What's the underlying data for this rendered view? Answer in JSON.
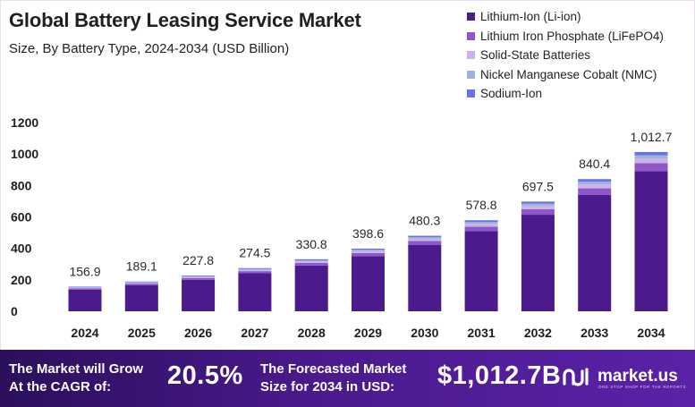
{
  "colors": {
    "lithium_ion": "#4b1a8c",
    "lifepo4": "#8e57c9",
    "solid_state": "#cbb3e8",
    "nmc": "#9db3d9",
    "sodium_ion": "#6a73e0",
    "footer_bg": "#3f1784"
  },
  "chart_data": {
    "type": "bar",
    "stacked": true,
    "title": "Global Battery Leasing Service Market",
    "subtitle": "Size, By Battery Type, 2024-2034 (USD Billion)",
    "categories": [
      "2024",
      "2025",
      "2026",
      "2027",
      "2028",
      "2029",
      "2030",
      "2031",
      "2032",
      "2033",
      "2034"
    ],
    "totals": [
      156.9,
      189.1,
      227.8,
      274.5,
      330.8,
      398.6,
      480.3,
      578.8,
      697.5,
      840.4,
      1012.7
    ],
    "total_labels": [
      "156.9",
      "189.1",
      "227.8",
      "274.5",
      "330.8",
      "398.6",
      "480.3",
      "578.8",
      "697.5",
      "840.4",
      "1,012.7"
    ],
    "series": [
      {
        "name": "Lithium-Ion (Li-ion)",
        "values": [
          138.1,
          166.4,
          200.5,
          241.6,
          291.1,
          350.8,
          422.7,
          509.3,
          613.8,
          739.6,
          891.2
        ]
      },
      {
        "name": "Lithium Iron Phosphate (LiFePO4)",
        "values": [
          7.8,
          9.5,
          11.4,
          13.7,
          16.5,
          19.9,
          24.0,
          28.9,
          34.9,
          42.0,
          50.6
        ]
      },
      {
        "name": "Solid-State Batteries",
        "values": [
          4.7,
          5.7,
          6.8,
          8.2,
          9.9,
          12.0,
          14.4,
          17.4,
          20.9,
          25.2,
          30.4
        ]
      },
      {
        "name": "Nickel Manganese Cobalt (NMC)",
        "values": [
          3.1,
          3.8,
          4.6,
          5.5,
          6.6,
          8.0,
          9.6,
          11.6,
          14.0,
          16.8,
          20.3
        ]
      },
      {
        "name": "Sodium-Ion",
        "values": [
          3.2,
          3.7,
          4.5,
          5.5,
          6.7,
          7.9,
          9.6,
          11.6,
          13.9,
          16.8,
          20.2
        ]
      }
    ],
    "y_ticks": [
      0,
      200,
      400,
      600,
      800,
      1000,
      1200
    ],
    "ylim": [
      0,
      1200
    ],
    "xlabel": "",
    "ylabel": "",
    "legend_position": "top-right",
    "grid": false
  },
  "footer": {
    "cagr_label_line1": "The Market will Grow",
    "cagr_label_line2": "At the CAGR of:",
    "cagr_value": "20.5%",
    "forecast_label_line1": "The Forecasted Market",
    "forecast_label_line2": "Size for 2034 in USD:",
    "forecast_value": "$1,012.7B",
    "brand": "market.us",
    "brand_tagline": "ONE STOP SHOP FOR THE REPORTS"
  }
}
